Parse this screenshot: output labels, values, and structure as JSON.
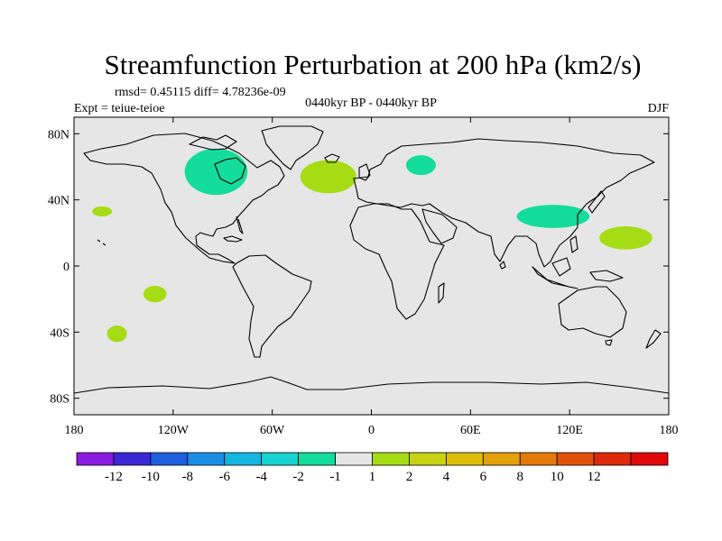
{
  "chart_data": {
    "type": "heatmap",
    "title": "Streamfunction Perturbation at 200 hPa (km2/s)",
    "stats_text": "rmsd= 0.45115  diff= 4.78236e-09",
    "left_subtitle": "Expt = teiue-teioe",
    "center_subtitle": "0440kyr BP - 0440kyr BP",
    "right_subtitle": "DJF",
    "xlim": [
      -180,
      180
    ],
    "ylim": [
      -90,
      90
    ],
    "x_ticks": [
      {
        "value": -180,
        "label": "180"
      },
      {
        "value": -120,
        "label": "120W"
      },
      {
        "value": -60,
        "label": "60W"
      },
      {
        "value": 0,
        "label": "0"
      },
      {
        "value": 60,
        "label": "60E"
      },
      {
        "value": 120,
        "label": "120E"
      },
      {
        "value": 180,
        "label": "180"
      }
    ],
    "y_ticks": [
      {
        "value": 80,
        "label": "80N"
      },
      {
        "value": 40,
        "label": "40N"
      },
      {
        "value": 0,
        "label": "0"
      },
      {
        "value": -40,
        "label": "40S"
      },
      {
        "value": -80,
        "label": "80S"
      }
    ],
    "background_value_range": "-1 to 1",
    "colorbar": {
      "colors": [
        "#8a1be0",
        "#3a28d4",
        "#1e5fe0",
        "#1a8fe6",
        "#14b6e0",
        "#18d4d0",
        "#14dc9a",
        "#e6e6e6",
        "#a6dc14",
        "#c8d214",
        "#dcbe0a",
        "#e2a00a",
        "#e27a0a",
        "#e0520a",
        "#dc2a0a",
        "#e00a0a"
      ],
      "labels": [
        "-12",
        "-10",
        "-8",
        "-6",
        "-4",
        "-2",
        "-1",
        "1",
        "2",
        "4",
        "6",
        "8",
        "10",
        "12"
      ]
    },
    "anomalies": [
      {
        "name": "Hudson Bay",
        "lon": -94,
        "lat": 57,
        "dlon": 19,
        "dlat": 14,
        "level": "-2 to -1",
        "color": "#14dc9a"
      },
      {
        "name": "North Atlantic",
        "lon": -26,
        "lat": 54,
        "dlon": 17,
        "dlat": 10,
        "level": "1 to 2",
        "color": "#a6dc14"
      },
      {
        "name": "Scandinavia",
        "lon": 30,
        "lat": 61,
        "dlon": 9,
        "dlat": 6,
        "level": "-2 to -1",
        "color": "#14dc9a"
      },
      {
        "name": "East China",
        "lon": 110,
        "lat": 30,
        "dlon": 22,
        "dlat": 7,
        "level": "-2 to -1",
        "color": "#14dc9a"
      },
      {
        "name": "West Pacific",
        "lon": 154,
        "lat": 17,
        "dlon": 16,
        "dlat": 7,
        "level": "1 to 2",
        "color": "#a6dc14"
      },
      {
        "name": "Northeast Pacific",
        "lon": -163,
        "lat": 33,
        "dlon": 6,
        "dlat": 3,
        "level": "1 to 2",
        "color": "#a6dc14"
      },
      {
        "name": "South Pacific",
        "lon": -131,
        "lat": -17,
        "dlon": 7,
        "dlat": 5,
        "level": "1 to 2",
        "color": "#a6dc14"
      },
      {
        "name": "Southeast Pacific",
        "lon": -154,
        "lat": -41,
        "dlon": 6,
        "dlat": 5,
        "level": "1 to 2",
        "color": "#a6dc14"
      }
    ]
  }
}
